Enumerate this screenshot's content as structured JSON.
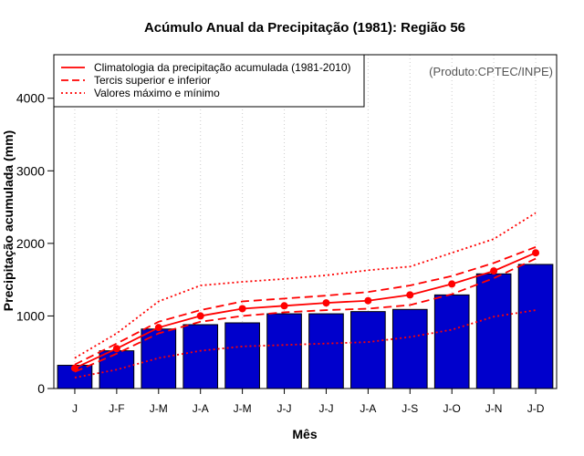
{
  "chart_data": {
    "type": "bar",
    "title": "Acúmulo Anual da Precipitação (1981): Região 56",
    "xlabel": "Mês",
    "ylabel": "Precipitação acumulada (mm)",
    "credit": "(Produto:CPTEC/INPE)",
    "categories": [
      "J",
      "J-F",
      "J-M",
      "J-A",
      "J-M",
      "J-J",
      "J-J",
      "J-A",
      "J-S",
      "J-O",
      "J-N",
      "J-D"
    ],
    "ylim": [
      0,
      4600
    ],
    "yticks": [
      0,
      1000,
      2000,
      3000,
      4000
    ],
    "grid": "vertical dotted",
    "legend_position": "top-left",
    "values": [
      320,
      520,
      820,
      880,
      905,
      1030,
      1030,
      1060,
      1090,
      1290,
      1580,
      1710
    ],
    "bar_color": "#0000cc",
    "line_color": "#ff0000",
    "legend": [
      {
        "label": "Climatologia da precipitação acumulada (1981-2010)",
        "style": "solid"
      },
      {
        "label": "Tercis superior e inferior",
        "style": "dashed"
      },
      {
        "label": "Valores máximo e mínimo",
        "style": "dotted"
      }
    ],
    "series": [
      {
        "name": "Climatologia",
        "style": "solid",
        "markers": true,
        "values": [
          280,
          550,
          840,
          1000,
          1100,
          1140,
          1180,
          1210,
          1290,
          1440,
          1620,
          1870
        ]
      },
      {
        "name": "Tercil superior",
        "style": "dashed",
        "values": [
          330,
          620,
          920,
          1080,
          1200,
          1240,
          1280,
          1330,
          1420,
          1550,
          1730,
          1950
        ]
      },
      {
        "name": "Tercil inferior",
        "style": "dashed",
        "values": [
          230,
          480,
          760,
          920,
          1000,
          1050,
          1080,
          1100,
          1150,
          1300,
          1520,
          1790
        ]
      },
      {
        "name": "Máximo",
        "style": "dotted",
        "values": [
          420,
          760,
          1200,
          1420,
          1470,
          1510,
          1560,
          1630,
          1680,
          1870,
          2060,
          2420
        ]
      },
      {
        "name": "Mínimo",
        "style": "dotted",
        "values": [
          150,
          260,
          420,
          520,
          580,
          600,
          620,
          640,
          710,
          810,
          990,
          1080
        ]
      }
    ]
  }
}
